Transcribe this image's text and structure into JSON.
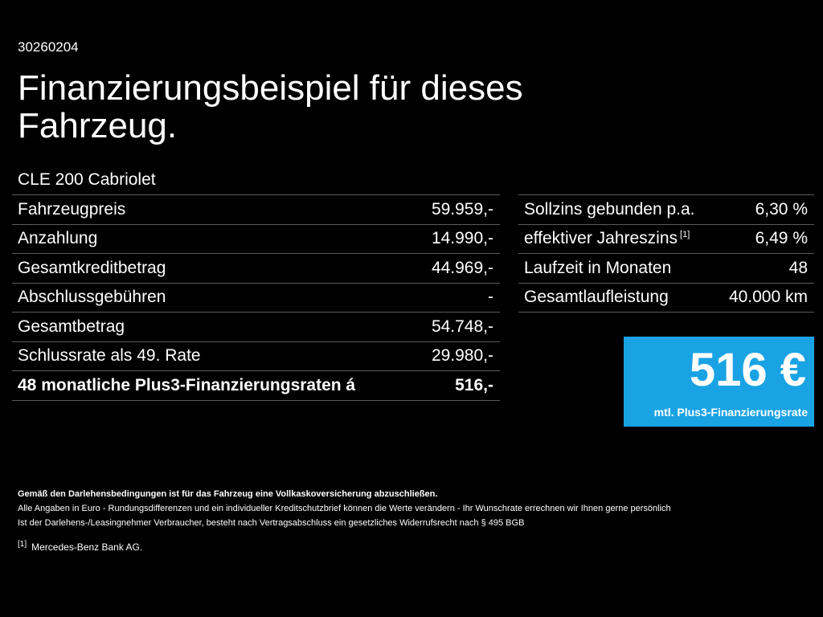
{
  "header": {
    "reference_id": "30260204",
    "title": "Finanzierungsbeispiel für dieses Fahrzeug.",
    "model": "CLE 200 Cabriolet"
  },
  "left_table": [
    {
      "label": "Fahrzeugpreis",
      "value": "59.959,-"
    },
    {
      "label": "Anzahlung",
      "value": "14.990,-"
    },
    {
      "label": "Gesamtkreditbetrag",
      "value": "44.969,-"
    },
    {
      "label": "Abschlussgebühren",
      "value": "-"
    },
    {
      "label": "Gesamtbetrag",
      "value": "54.748,-"
    },
    {
      "label": "Schlussrate als 49. Rate",
      "value": "29.980,-"
    },
    {
      "label": "48 monatliche Plus3-Finanzierungsraten á",
      "value": "516,-"
    }
  ],
  "right_table": [
    {
      "label": "Sollzins gebunden p.a.",
      "value": "6,30 %"
    },
    {
      "label": "effektiver Jahreszins",
      "footnote_ref": "[1]",
      "value": "6,49 %"
    },
    {
      "label": "Laufzeit in Monaten",
      "value": "48"
    },
    {
      "label": "Gesamtlaufleistung",
      "value": "40.000 km"
    }
  ],
  "rate_box": {
    "amount": "516 €",
    "label": "mtl. Plus3-Finanzierungsrate",
    "color": "#1aa3e4"
  },
  "footnotes": {
    "insurance": "Gemäß den Darlehensbedingungen ist für das Fahrzeug eine Vollkaskoversicherung abzuschließen.",
    "line1": "Alle Angaben in Euro - Rundungsdifferenzen und ein individueller Kreditschutzbrief können die Werte verändern - Ihr Wunschrate errechnen wir Ihnen gerne persönlich",
    "line2": "Ist der Darlehens-/Leasingnehmer Verbraucher, besteht nach Vertragsabschluss ein gesetzliches Widerrufsrecht nach § 495 BGB",
    "note_marker": "[1]",
    "note_text": "Mercedes-Benz Bank AG."
  },
  "colors": {
    "background": "#000000",
    "text": "#ffffff",
    "divider": "#5a5a5a"
  }
}
